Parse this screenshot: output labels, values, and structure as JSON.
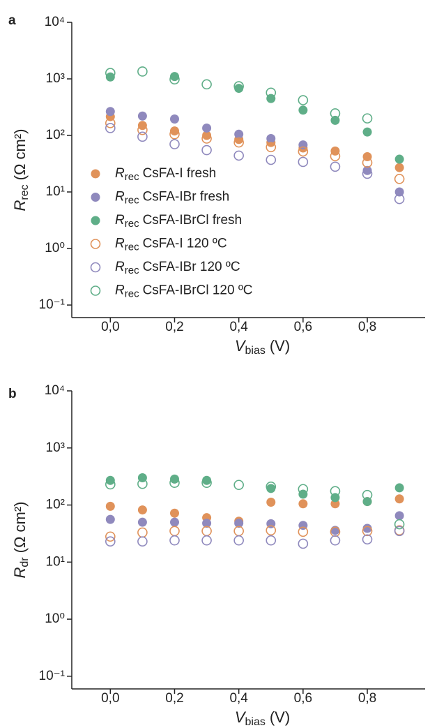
{
  "chart_data": [
    {
      "type": "scatter",
      "panel_label": "a",
      "log_y": true,
      "legend": "lower left",
      "y_label": {
        "symbol": "R",
        "subscript": "rec",
        "unit": "(Ω cm²)"
      },
      "x_label": {
        "symbol": "V",
        "subscript": "bias",
        "unit": "(V)"
      },
      "x": [
        0.0,
        0.1,
        0.2,
        0.3,
        0.4,
        0.5,
        0.6,
        0.7,
        0.8,
        0.9
      ],
      "xlim": [
        -0.12,
        0.98
      ],
      "xticks": [
        {
          "value": 0.0,
          "label": "0,0"
        },
        {
          "value": 0.2,
          "label": "0,2"
        },
        {
          "value": 0.4,
          "label": "0,4"
        },
        {
          "value": 0.6,
          "label": "0,6"
        },
        {
          "value": 0.8,
          "label": "0,8"
        }
      ],
      "ylim": [
        0.06,
        10000
      ],
      "yticks": [
        {
          "value": 0.1,
          "label": "10⁻¹"
        },
        {
          "value": 1,
          "label": "10⁰"
        },
        {
          "value": 10,
          "label": "10¹"
        },
        {
          "value": 100,
          "label": "10²"
        },
        {
          "value": 1000,
          "label": "10³"
        },
        {
          "value": 10000,
          "label": "10⁴"
        }
      ],
      "series": [
        {
          "name": "CsFA-I fresh",
          "color": "#e0925a",
          "filled": true,
          "values": [
            215,
            150,
            120,
            100,
            85,
            75,
            60,
            53,
            42,
            27
          ]
        },
        {
          "name": "CsFA-IBr fresh",
          "color": "#8f89bd",
          "filled": true,
          "values": [
            265,
            220,
            195,
            135,
            105,
            88,
            68,
            null,
            24,
            10
          ]
        },
        {
          "name": "CsFA-IBrCl  fresh",
          "color": "#5fae88",
          "filled": true,
          "values": [
            1080,
            null,
            1100,
            null,
            680,
            450,
            280,
            185,
            115,
            38
          ]
        },
        {
          "name": "CsFA-I 120 ºC",
          "color": "#e0925a",
          "filled": false,
          "values": [
            165,
            125,
            105,
            88,
            75,
            62,
            52,
            43,
            33,
            17
          ]
        },
        {
          "name": "CsFA-IBr  120 ºC",
          "color": "#8f89bd",
          "filled": false,
          "values": [
            135,
            95,
            70,
            55,
            44,
            37,
            34,
            28,
            21,
            7.5
          ]
        },
        {
          "name": "CsFA-IBrCl  120 ºC",
          "color": "#5fae88",
          "filled": false,
          "values": [
            1270,
            1350,
            980,
            800,
            740,
            570,
            420,
            245,
            200,
            null
          ]
        }
      ]
    },
    {
      "type": "scatter",
      "panel_label": "b",
      "log_y": true,
      "y_label": {
        "symbol": "R",
        "subscript": "dr",
        "unit": "(Ω cm²)"
      },
      "x_label": {
        "symbol": "V",
        "subscript": "bias",
        "unit": "(V)"
      },
      "x": [
        0.0,
        0.1,
        0.2,
        0.3,
        0.4,
        0.5,
        0.6,
        0.7,
        0.8,
        0.9
      ],
      "xlim": [
        -0.12,
        0.98
      ],
      "xticks": [
        {
          "value": 0.0,
          "label": "0,0"
        },
        {
          "value": 0.2,
          "label": "0,2"
        },
        {
          "value": 0.4,
          "label": "0,4"
        },
        {
          "value": 0.6,
          "label": "0,6"
        },
        {
          "value": 0.8,
          "label": "0,8"
        }
      ],
      "ylim": [
        0.06,
        10000
      ],
      "yticks": [
        {
          "value": 0.1,
          "label": "10⁻¹"
        },
        {
          "value": 1,
          "label": "10⁰"
        },
        {
          "value": 10,
          "label": "10¹"
        },
        {
          "value": 100,
          "label": "10²"
        },
        {
          "value": 1000,
          "label": "10³"
        },
        {
          "value": 10000,
          "label": "10⁴"
        }
      ],
      "series": [
        {
          "color": "#e0925a",
          "filled": true,
          "values": [
            95,
            82,
            72,
            60,
            52,
            112,
            105,
            105,
            115,
            128
          ]
        },
        {
          "color": "#8f89bd",
          "filled": true,
          "values": [
            56,
            50,
            50,
            48,
            48,
            47,
            44,
            36,
            39,
            65
          ]
        },
        {
          "color": "#5fae88",
          "filled": true,
          "values": [
            270,
            300,
            285,
            270,
            null,
            195,
            155,
            135,
            115,
            200
          ]
        },
        {
          "color": "#e0925a",
          "filled": false,
          "values": [
            28,
            33,
            35,
            35,
            35,
            36,
            34,
            34,
            35,
            36
          ]
        },
        {
          "color": "#8f89bd",
          "filled": false,
          "values": [
            23,
            23,
            24,
            24,
            24,
            24,
            21,
            24,
            25,
            35
          ]
        },
        {
          "color": "#5fae88",
          "filled": false,
          "values": [
            230,
            235,
            245,
            245,
            225,
            210,
            190,
            175,
            150,
            46
          ]
        }
      ]
    }
  ]
}
